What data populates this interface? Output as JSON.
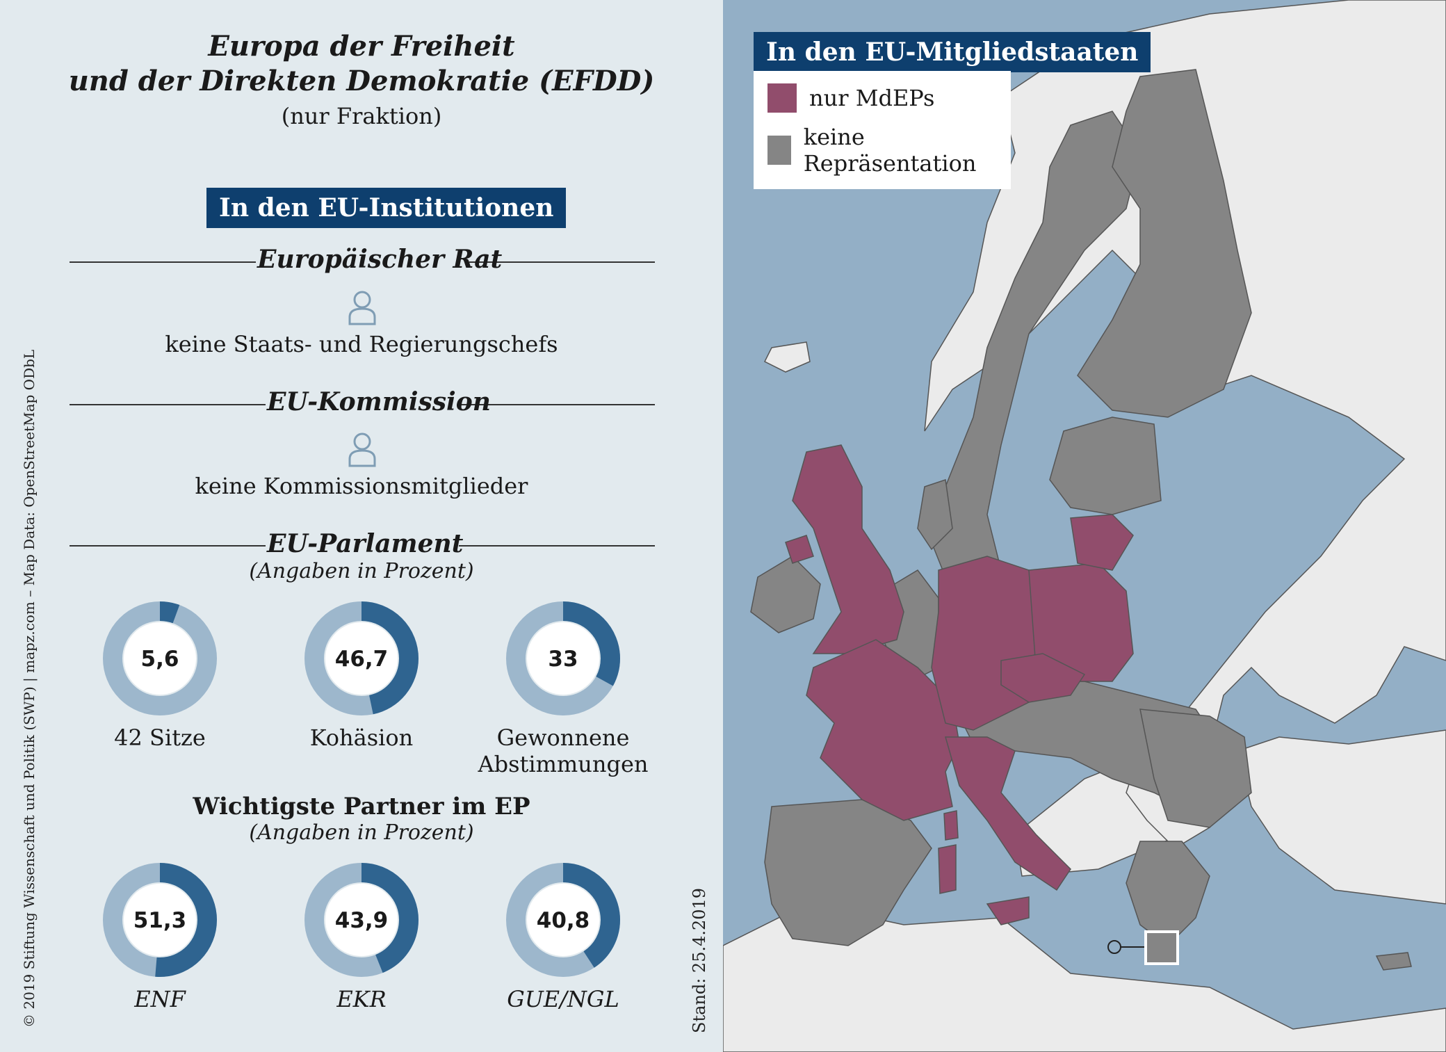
{
  "title_line1": "Europa der Freiheit",
  "title_line2": "und der Direkten Demokratie (EFDD)",
  "subtitle": "(nur Fraktion)",
  "institutions_badge": "In den EU-Institutionen",
  "council": {
    "heading": "Europäischer Rat",
    "icon": "person-icon",
    "text": "keine Staats- und Regierungschefs"
  },
  "commission": {
    "heading": "EU-Kommission",
    "icon": "person-icon",
    "text": "keine Kommissionsmitglieder"
  },
  "parliament": {
    "heading": "EU-Parlament",
    "note": "(Angaben in Prozent)",
    "donuts": [
      {
        "value": "5,6",
        "pct": 5.6,
        "label": "42 Sitze"
      },
      {
        "value": "46,7",
        "pct": 46.7,
        "label": "Kohäsion"
      },
      {
        "value": "33",
        "pct": 33,
        "label": "Gewonnene Abstimmungen"
      }
    ]
  },
  "partners": {
    "heading": "Wichtigste Partner im EP",
    "note": "(Angaben in Prozent)",
    "donuts": [
      {
        "value": "51,3",
        "pct": 51.3,
        "label": "ENF"
      },
      {
        "value": "43,9",
        "pct": 43.9,
        "label": "EKR"
      },
      {
        "value": "40,8",
        "pct": 40.8,
        "label": "GUE/NGL"
      }
    ]
  },
  "credit": "© 2019 Stiftung Wissenschaft und Politik (SWP) | mapz.com – Map Data: OpenStreetMap ODbL",
  "stand": "Stand: 25.4.2019",
  "colors": {
    "donut_fill": "#2f6490",
    "donut_track": "#9db7cc",
    "member_mdeps": "#914d6c",
    "no_representation": "#858585",
    "sea": "#93afc6",
    "land_non_eu": "#ebebeb"
  },
  "map": {
    "badge": "In den EU-Mitgliedstaaten",
    "legend": [
      {
        "label": "nur MdEPs",
        "color": "#914d6c"
      },
      {
        "label": "keine Repräsentation",
        "color": "#858585"
      }
    ]
  }
}
